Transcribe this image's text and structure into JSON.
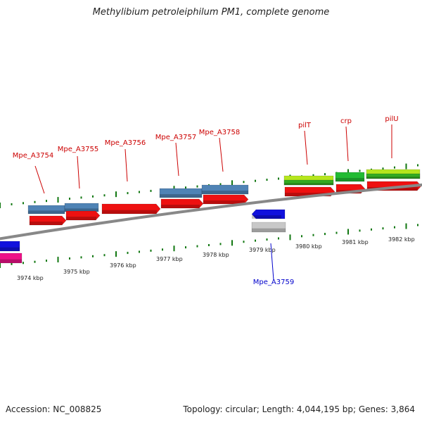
{
  "title": "Methylibium petroleiphilum PM1, complete genome",
  "footer": {
    "accession": "Accession: NC_008825",
    "summary": "Topology: circular; Length: 4,044,195 bp; Genes: 3,864"
  },
  "ticks": [
    {
      "kbp": 3974,
      "label": "3974 kbp"
    },
    {
      "kbp": 3975,
      "label": "3975 kbp"
    },
    {
      "kbp": 3976,
      "label": "3976 kbp"
    },
    {
      "kbp": 3977,
      "label": "3977 kbp"
    },
    {
      "kbp": 3978,
      "label": "3978 kbp"
    },
    {
      "kbp": 3979,
      "label": "3979 kbp"
    },
    {
      "kbp": 3980,
      "label": "3980 kbp"
    },
    {
      "kbp": 3981,
      "label": "3981 kbp"
    },
    {
      "kbp": 3982,
      "label": "3982 kbp"
    }
  ],
  "gene_labels": [
    {
      "name": "Mpe_A3754",
      "color": "#cc0000"
    },
    {
      "name": "Mpe_A3755",
      "color": "#cc0000"
    },
    {
      "name": "Mpe_A3756",
      "color": "#cc0000"
    },
    {
      "name": "Mpe_A3757",
      "color": "#cc0000"
    },
    {
      "name": "Mpe_A3758",
      "color": "#cc0000"
    },
    {
      "name": "pilT",
      "color": "#cc0000"
    },
    {
      "name": "crp",
      "color": "#cc0000"
    },
    {
      "name": "pilU",
      "color": "#cc0000"
    },
    {
      "name": "Mpe_A3759",
      "color": "#0000cc"
    }
  ],
  "colors": {
    "cds_red": "#ee1111",
    "gene_steelblue": "#4f83b5",
    "gene_lime": "#b5e61d",
    "gene_green": "#22bb33",
    "reverse_blue": "#1111dd",
    "reverse_gray": "#c8c8c8",
    "reverse_pink": "#ee1188",
    "tick_green": "#117711",
    "backbone": "#888888"
  }
}
